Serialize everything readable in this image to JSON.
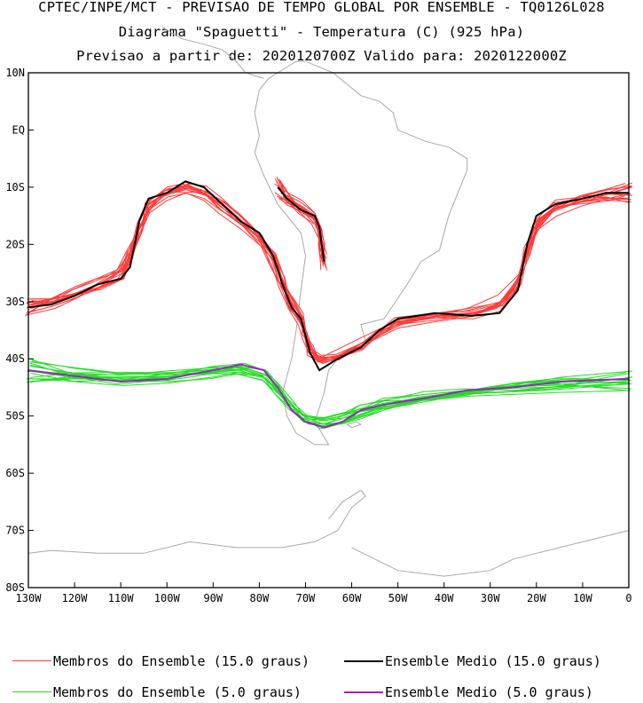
{
  "header": {
    "line1": "CPTEC/INPE/MCT - PREVISAO DE TEMPO GLOBAL POR ENSEMBLE - TQ0126L028",
    "line2": "Diagrama \"Spaguetti\" - Temperatura (C) (925 hPa)",
    "line3": "Previsao a partir de: 2020120700Z  Valido para: 2020122000Z"
  },
  "colors": {
    "member15": "#ff3a3a",
    "mean15": "#000000",
    "member5": "#22dd22",
    "mean5": "#a020c8",
    "coast": "#a8a8a8"
  },
  "chart_data": {
    "type": "line",
    "title": "Diagrama \"Spaguetti\" - Temperatura (C) (925 hPa)",
    "xlabel": "",
    "ylabel": "",
    "xlim": [
      -130,
      0
    ],
    "ylim": [
      -80,
      10
    ],
    "x_ticks": [
      -130,
      -120,
      -110,
      -100,
      -90,
      -80,
      -70,
      -60,
      -50,
      -40,
      -30,
      -20,
      -10,
      0
    ],
    "x_tick_labels": [
      "130W",
      "120W",
      "110W",
      "100W",
      "90W",
      "80W",
      "70W",
      "60W",
      "50W",
      "40W",
      "30W",
      "20W",
      "10W",
      "0"
    ],
    "y_ticks": [
      10,
      0,
      -10,
      -20,
      -30,
      -40,
      -50,
      -60,
      -70,
      -80
    ],
    "y_tick_labels": [
      "10N",
      "EQ",
      "10S",
      "20S",
      "30S",
      "40S",
      "50S",
      "60S",
      "70S",
      "80S"
    ],
    "series": [
      {
        "name": "Ensemble Medio (15.0 graus)",
        "role": "mean15",
        "segments": [
          [
            [
              -130,
              -31
            ],
            [
              -125,
              -30.5
            ],
            [
              -120,
              -29
            ],
            [
              -115,
              -27
            ],
            [
              -110,
              -26
            ],
            [
              -108,
              -24
            ],
            [
              -106,
              -16
            ],
            [
              -104,
              -12
            ],
            [
              -100,
              -11
            ],
            [
              -96,
              -9
            ],
            [
              -92,
              -10
            ],
            [
              -88,
              -13
            ],
            [
              -84,
              -16
            ],
            [
              -80,
              -18
            ],
            [
              -77,
              -22
            ],
            [
              -75,
              -27
            ],
            [
              -73,
              -31
            ],
            [
              -71,
              -33
            ],
            [
              -70,
              -36
            ],
            [
              -69,
              -39
            ],
            [
              -67,
              -42
            ],
            [
              -63,
              -40
            ],
            [
              -58,
              -38
            ],
            [
              -54,
              -35
            ],
            [
              -50,
              -33
            ],
            [
              -42,
              -32
            ],
            [
              -34,
              -32.5
            ],
            [
              -28,
              -32
            ],
            [
              -24,
              -28
            ],
            [
              -22,
              -20
            ],
            [
              -20,
              -15
            ],
            [
              -16,
              -13
            ],
            [
              -10,
              -12
            ],
            [
              -5,
              -11
            ],
            [
              0,
              -11
            ]
          ],
          [
            [
              -76,
              -10
            ],
            [
              -74,
              -12
            ],
            [
              -71,
              -14
            ],
            [
              -68,
              -15
            ],
            [
              -67,
              -17
            ],
            [
              -66.5,
              -20
            ],
            [
              -66,
              -23
            ]
          ]
        ]
      },
      {
        "name": "Ensemble Medio (5.0 graus)",
        "role": "mean5",
        "segments": [
          [
            [
              -130,
              -42
            ],
            [
              -120,
              -43
            ],
            [
              -110,
              -44
            ],
            [
              -100,
              -43.5
            ],
            [
              -90,
              -42
            ],
            [
              -84,
              -41
            ],
            [
              -79,
              -42
            ],
            [
              -76,
              -45
            ],
            [
              -73,
              -49
            ],
            [
              -70,
              -51
            ],
            [
              -66,
              -52
            ],
            [
              -62,
              -51
            ],
            [
              -58,
              -49
            ],
            [
              -53,
              -48
            ],
            [
              -45,
              -47
            ],
            [
              -35,
              -45.5
            ],
            [
              -25,
              -45
            ],
            [
              -15,
              -44
            ],
            [
              0,
              -43.5
            ]
          ]
        ]
      }
    ],
    "member_groups": [
      {
        "name": "Membros do Ensemble (15.0 graus)",
        "role": "member15",
        "members": 15,
        "spread_deg": 2.0
      },
      {
        "name": "Membros do Ensemble (5.0 graus)",
        "role": "member5",
        "members": 15,
        "spread_deg": 2.2
      }
    ]
  },
  "legend": {
    "items": [
      {
        "label": "Membros do Ensemble (15.0 graus)",
        "role": "member15"
      },
      {
        "label": "Ensemble Medio (15.0 graus)",
        "role": "mean15"
      },
      {
        "label": "Membros do Ensemble (5.0 graus)",
        "role": "member5"
      },
      {
        "label": "Ensemble Medio (5.0 graus)",
        "role": "mean5"
      }
    ]
  }
}
